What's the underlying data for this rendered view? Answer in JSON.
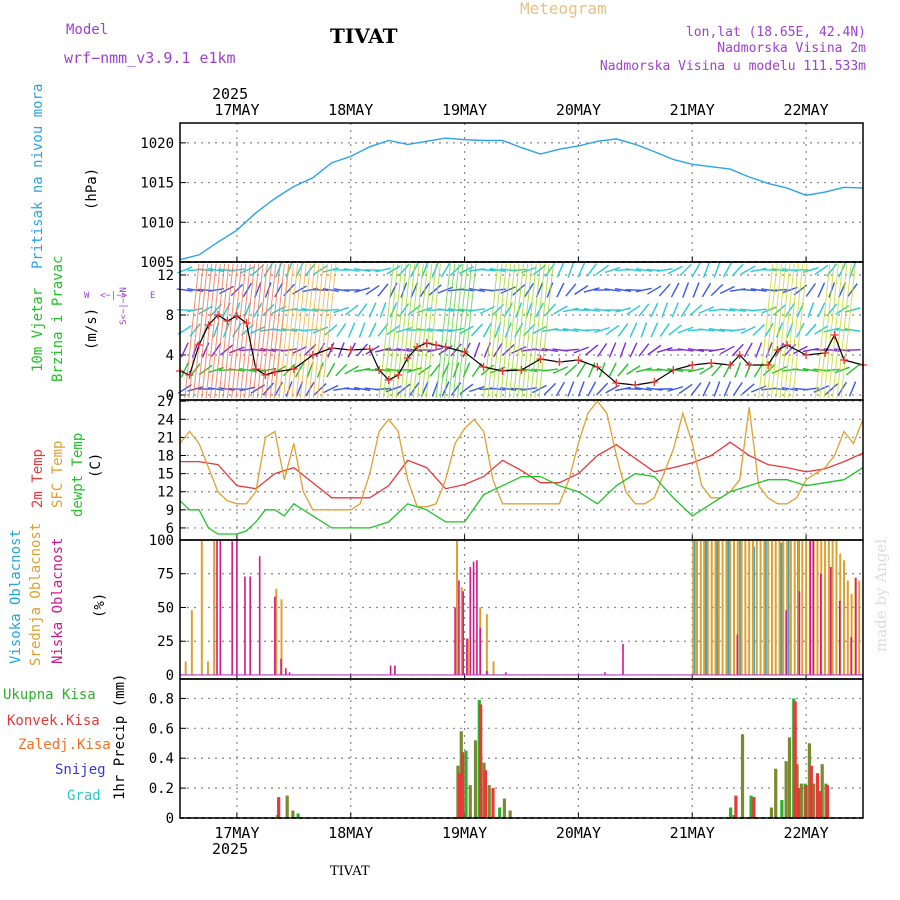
{
  "header": {
    "model_label": "Model",
    "model_name": "wrf−nmm_v3.9.1  e1km",
    "station": "TIVAT",
    "product": "Meteogram",
    "coords": "lon,lat (18.65E, 42.4N)",
    "elevation": "Nadmorska Visina 2m",
    "model_elevation": "Nadmorska Visina u modelu 111.533m",
    "footer_station": "TIVAT",
    "watermark": "made by Angel"
  },
  "time_axis": {
    "year": "2025",
    "day_labels": [
      "17MAY",
      "18MAY",
      "19MAY",
      "20MAY",
      "21MAY",
      "22MAY"
    ],
    "day_ticks_hours": [
      12,
      36,
      60,
      84,
      108,
      132
    ],
    "range_hours": [
      0,
      144
    ]
  },
  "colors": {
    "pressure": "#2aa3e8",
    "temp2m": "#e8393c",
    "sfc": "#e0a030",
    "dewpt": "#22c22a",
    "high_cloud": "#20a8e0",
    "mid_cloud": "#e0a030",
    "low_cloud": "#d01888",
    "total_precip": "#30b030",
    "conv_precip": "#e83838",
    "frozen_precip": "#f07020",
    "snow": "#3838d8",
    "hail": "#28c8c8",
    "title_purple": "#a040d0",
    "title_orange": "#e8c080"
  },
  "chart_data": [
    {
      "type": "line",
      "id": "pressure",
      "label": "Pritisak na nivou mora",
      "unit": "(hPa)",
      "ylim": [
        1005,
        1022.5
      ],
      "yticks": [
        "1005",
        "1010",
        "1015",
        "1020"
      ],
      "x": [
        0,
        4,
        8,
        12,
        16,
        20,
        24,
        28,
        32,
        36,
        40,
        44,
        48,
        52,
        56,
        60,
        64,
        68,
        72,
        76,
        80,
        84,
        88,
        92,
        96,
        100,
        104,
        108,
        112,
        116,
        120,
        124,
        128,
        132,
        136,
        140,
        144
      ],
      "y": [
        1005.3,
        1005.9,
        1007.5,
        1009.0,
        1011.2,
        1013.0,
        1014.5,
        1015.6,
        1017.5,
        1018.3,
        1019.5,
        1020.3,
        1019.8,
        1020.2,
        1020.6,
        1020.4,
        1020.3,
        1020.3,
        1019.4,
        1018.6,
        1019.2,
        1019.6,
        1020.2,
        1020.5,
        1019.8,
        1018.9,
        1017.9,
        1017.3,
        1017.0,
        1016.7,
        1015.7,
        1014.9,
        1014.3,
        1013.4,
        1013.8,
        1014.4,
        1014.3
      ]
    },
    {
      "type": "line",
      "id": "wind",
      "label": "10m Vjetar",
      "label2": "Brzina i Pravac",
      "unit": "(m/s)",
      "compass": [
        "N",
        "<",
        "−",
        "|",
        "−",
        ">",
        "S"
      ],
      "compass_w": "W",
      "compass_e": "E",
      "ylim": [
        -0.5,
        13.3
      ],
      "yticks": [
        "0",
        "4",
        "8",
        "12"
      ],
      "series": [
        {
          "name": "speed",
          "x": [
            0,
            2,
            4,
            6,
            8,
            10,
            12,
            14,
            16,
            18,
            20,
            24,
            28,
            32,
            36,
            40,
            42,
            44,
            46,
            48,
            50,
            52,
            54,
            56,
            60,
            64,
            68,
            72,
            76,
            80,
            84,
            88,
            92,
            96,
            100,
            104,
            108,
            112,
            116,
            118,
            120,
            124,
            126,
            128,
            132,
            136,
            138,
            140,
            144
          ],
          "y": [
            2.4,
            2.0,
            5.0,
            7.0,
            8.0,
            7.4,
            7.9,
            7.2,
            2.6,
            2.0,
            2.3,
            2.6,
            4.0,
            4.7,
            4.5,
            4.6,
            2.5,
            1.5,
            2.0,
            3.7,
            4.8,
            5.2,
            5.0,
            4.8,
            4.3,
            2.8,
            2.4,
            2.5,
            3.6,
            3.3,
            3.5,
            2.8,
            1.2,
            1.0,
            1.3,
            2.5,
            3.0,
            3.2,
            3.0,
            4.0,
            3.0,
            3.0,
            4.5,
            5.0,
            4.0,
            4.2,
            6.0,
            3.5,
            3.0
          ]
        }
      ]
    },
    {
      "type": "line",
      "id": "temperature",
      "ylim": [
        4,
        27.2
      ],
      "yticks": [
        "6",
        "9",
        "12",
        "15",
        "18",
        "21",
        "24",
        "27"
      ],
      "series": [
        {
          "name": "2m Temp",
          "x": [
            0,
            4,
            8,
            12,
            16,
            20,
            24,
            28,
            32,
            36,
            40,
            44,
            48,
            52,
            56,
            60,
            64,
            68,
            72,
            76,
            80,
            84,
            88,
            92,
            96,
            100,
            104,
            108,
            112,
            116,
            120,
            124,
            128,
            132,
            136,
            140,
            144
          ],
          "y": [
            17,
            17,
            16.5,
            13,
            12.5,
            15,
            16,
            13.5,
            11,
            11,
            11,
            13,
            17.2,
            16,
            12.5,
            13.2,
            14.5,
            17.2,
            15.5,
            13.5,
            13.5,
            15,
            18,
            19.8,
            17.5,
            15.3,
            16,
            16.8,
            18,
            20.2,
            18,
            16.5,
            16,
            15.3,
            15.8,
            17,
            18.4
          ]
        },
        {
          "name": "SFC Temp",
          "x": [
            0,
            2,
            4,
            6,
            8,
            10,
            12,
            14,
            16,
            18,
            20,
            22,
            24,
            26,
            28,
            30,
            32,
            36,
            38,
            40,
            42,
            44,
            46,
            48,
            50,
            52,
            54,
            56,
            58,
            60,
            62,
            64,
            66,
            68,
            70,
            72,
            74,
            76,
            80,
            82,
            84,
            86,
            88,
            90,
            92,
            94,
            96,
            98,
            100,
            102,
            104,
            106,
            108,
            110,
            112,
            114,
            116,
            118,
            120,
            122,
            124,
            126,
            128,
            130,
            132,
            134,
            136,
            138,
            140,
            142,
            144
          ],
          "y": [
            20,
            22,
            20,
            16,
            12,
            10.5,
            10,
            10,
            12,
            21,
            22,
            14,
            20,
            12,
            9,
            9,
            9,
            9,
            10,
            15,
            22,
            24,
            22,
            14,
            9.5,
            9.5,
            10,
            14,
            20,
            22.5,
            24,
            22,
            14,
            10,
            10,
            10,
            10,
            10,
            10,
            14,
            20,
            25,
            27,
            25,
            18,
            12,
            10,
            10,
            11,
            15,
            19,
            25,
            20,
            13,
            11,
            11,
            12,
            14,
            26,
            13,
            11,
            10,
            10,
            11,
            14,
            15,
            16,
            18,
            22,
            20,
            24
          ]
        },
        {
          "name": "dewpt Temp",
          "x": [
            0,
            2,
            4,
            6,
            8,
            10,
            12,
            14,
            16,
            18,
            20,
            22,
            24,
            28,
            32,
            36,
            40,
            44,
            48,
            52,
            56,
            60,
            64,
            68,
            72,
            76,
            80,
            84,
            86,
            88,
            92,
            96,
            100,
            104,
            108,
            112,
            116,
            120,
            124,
            128,
            132,
            136,
            140,
            144
          ],
          "y": [
            10.5,
            9,
            9,
            6,
            5,
            5,
            5,
            5.5,
            7,
            9,
            9,
            8,
            10,
            8,
            6,
            6,
            6,
            7,
            10,
            9,
            7,
            7,
            11.5,
            13,
            14.5,
            14.5,
            13,
            12,
            11,
            10,
            13,
            15,
            14.5,
            11,
            8,
            10,
            12,
            13,
            14,
            14,
            13,
            13.5,
            14,
            16
          ]
        }
      ]
    },
    {
      "type": "bar",
      "id": "cloud",
      "unit": "(%)",
      "labels": [
        "Visoka Oblacnost",
        "Srednja Oblacnost",
        "Niska Oblacnost"
      ],
      "ylim": [
        -3,
        100
      ],
      "yticks": [
        "0",
        "25",
        "50",
        "75",
        "100"
      ],
      "series": [
        {
          "name": "Visoka Oblacnost",
          "x": [
            108.4,
            110.9,
            113.4,
            115.7,
            118.2,
            120.9,
            123.4,
            126.7,
            128.2,
            130.4
          ],
          "values": [
            100,
            100,
            100,
            100,
            100,
            95,
            100,
            98,
            100,
            100
          ]
        },
        {
          "name": "Srednja Oblacnost",
          "x": [
            1.2,
            2.5,
            3.4,
            4.6,
            5.9,
            7.2,
            8.5,
            18,
            18.7,
            20.3,
            21.4,
            58.4,
            59.4,
            60.7,
            63.3,
            64.7,
            66.1,
            108.2,
            109.0,
            109.8,
            110.5,
            111.3,
            112.1,
            112.9,
            113.6,
            114.4,
            115.2,
            116.0,
            116.8,
            117.6,
            118.4,
            119.2,
            120.0,
            120.8,
            121.6,
            122.4,
            123.2,
            124.0,
            124.8,
            125.6,
            126.4,
            127.2,
            128.0,
            128.8,
            129.6,
            130.4,
            131.2,
            132.0,
            132.8,
            133.6,
            134.4,
            135.2,
            136.0,
            136.8,
            137.6,
            138.4,
            139.2,
            140.0,
            140.8,
            141.6,
            142.4,
            143.2
          ],
          "values": [
            10,
            48,
            0,
            100,
            10,
            100,
            0,
            0,
            0,
            64,
            56,
            100,
            65,
            27,
            50,
            45,
            10,
            100,
            100,
            100,
            100,
            100,
            100,
            100,
            100,
            100,
            100,
            100,
            100,
            100,
            100,
            100,
            100,
            100,
            100,
            100,
            100,
            100,
            100,
            100,
            100,
            100,
            100,
            100,
            100,
            100,
            100,
            100,
            100,
            100,
            100,
            100,
            100,
            100,
            100,
            100,
            90,
            85,
            70,
            60,
            72,
            70
          ]
        },
        {
          "name": "Niska Oblacnost",
          "x": [
            7.8,
            8.5,
            11,
            12,
            13.7,
            14.8,
            16.8,
            20,
            21.3,
            22.3,
            23.1,
            44.4,
            45.3,
            58,
            58.8,
            59.7,
            60.5,
            61.2,
            61.9,
            62.6,
            63.3,
            64.7,
            66,
            68.7,
            89.6,
            93.4,
            117.5,
            127.8,
            130.6,
            132.9,
            133.5,
            135.1,
            137.2,
            139.1,
            141.5,
            142.5
          ],
          "values": [
            100,
            100,
            99,
            100,
            73,
            73,
            88,
            58,
            12,
            5,
            2,
            7,
            7,
            50,
            70,
            62,
            27,
            80,
            84,
            85,
            35,
            3,
            0,
            2,
            2,
            23,
            30,
            48,
            62,
            100,
            100,
            75,
            80,
            55,
            28,
            72
          ]
        }
      ]
    },
    {
      "type": "bar",
      "id": "precip",
      "unit": "1hr Precip (mm)",
      "labels": [
        "Ukupna Kisa",
        "Konvek.Kisa",
        "Zaledj.Kisa",
        "Snijeg",
        "Grad"
      ],
      "ylim": [
        0,
        0.93
      ],
      "yticks": [
        "0",
        "0.2",
        "0.4",
        "0.6",
        "0.8"
      ],
      "series": [
        {
          "name": "Ukupna Kisa",
          "x": [
            20.6,
            22.6,
            23.8,
            24.9,
            58.6,
            59.3,
            60.3,
            61.2,
            62.3,
            63.1,
            64.1,
            65.2,
            67.4,
            68.4,
            69.6,
            116.1,
            116.8,
            118.6,
            120.4,
            124.7,
            125.6,
            126.9,
            127.8,
            128.5,
            129.4,
            130.1,
            131.0,
            131.8,
            132.7,
            133.6,
            134.6,
            135.4,
            136.2,
            137.1,
            137.9,
            138.8,
            139.6,
            140.4,
            141.4,
            142.3,
            143.4
          ],
          "values": [
            0.02,
            0.15,
            0.05,
            0.03,
            0.35,
            0.58,
            0.45,
            0.22,
            0.52,
            0.79,
            0.37,
            0.22,
            0.07,
            0.13,
            0.05,
            0.07,
            0.02,
            0.56,
            0.15,
            0.07,
            0.33,
            0.12,
            0.38,
            0.54,
            0.8,
            0.36,
            0.23,
            0.23,
            0.5,
            0.23,
            0.15,
            0.36,
            0.23,
            0.0,
            0.0,
            0.0,
            0.0,
            0.0,
            0.0,
            0.0,
            0.0
          ]
        },
        {
          "name": "Konvek.Kisa",
          "x": [
            20.8,
            58.9,
            59.6,
            63.4,
            64.4,
            66,
            117.2,
            121,
            129.7,
            130.4,
            132.0,
            133.1,
            134.4,
            135.0,
            136.5
          ],
          "values": [
            0.14,
            0.3,
            0.44,
            0.76,
            0.32,
            0.2,
            0.15,
            0.14,
            0.78,
            0.2,
            0.22,
            0.35,
            0.3,
            0.18,
            0.22
          ]
        }
      ]
    }
  ]
}
